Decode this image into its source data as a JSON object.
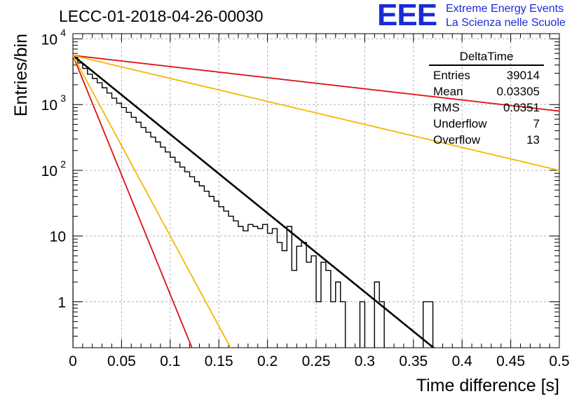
{
  "chart_data": {
    "type": "histogram",
    "title": "LECC-01-2018-04-26-00030",
    "xlabel": "Time difference [s]",
    "ylabel": "Entries/bin",
    "xlim": [
      0,
      0.5
    ],
    "ylim": [
      0.2,
      12000
    ],
    "yscale": "log",
    "grid": true,
    "bin_width": 0.005,
    "x_ticks": [
      "0",
      "0.05",
      "0.1",
      "0.15",
      "0.2",
      "0.25",
      "0.3",
      "0.35",
      "0.4",
      "0.45",
      "0.5"
    ],
    "y_ticks": [
      "1",
      "10",
      "10^2",
      "10^3",
      "10^4"
    ],
    "histogram": {
      "name": "DeltaTime",
      "values": [
        5200,
        4300,
        3550,
        2900,
        2500,
        2150,
        1800,
        1500,
        1250,
        1050,
        900,
        760,
        640,
        540,
        450,
        380,
        320,
        270,
        225,
        190,
        158,
        133,
        112,
        95,
        80,
        67,
        58,
        48,
        40,
        34,
        28,
        24,
        20,
        17,
        14,
        12,
        15,
        14,
        13,
        15,
        11,
        13,
        8,
        6,
        14,
        3,
        7,
        8,
        4,
        5,
        1,
        4,
        3,
        1,
        2,
        1,
        0,
        0,
        0,
        1,
        0,
        0,
        2,
        1,
        0,
        0,
        0,
        0,
        0,
        0,
        0,
        0,
        1,
        1,
        0,
        0,
        0,
        0,
        0,
        0,
        0,
        0,
        0,
        0,
        0,
        0,
        0,
        0,
        0,
        0,
        0,
        0,
        0,
        0,
        0,
        0,
        0,
        0,
        0,
        0
      ]
    },
    "fits": [
      {
        "color": "#000000",
        "A": 5600,
        "tau": 0.0362
      },
      {
        "color": "#dd1111",
        "A": 5600,
        "tau": 0.01195
      },
      {
        "color": "#f5b800",
        "A": 5600,
        "tau": 0.01582
      },
      {
        "color": "#dd1111",
        "A": 5600,
        "tau": 0.2563
      },
      {
        "color": "#f5b800",
        "A": 5600,
        "tau": 0.1241
      }
    ],
    "stats": {
      "name": "DeltaTime",
      "rows": [
        {
          "label": "Entries",
          "value": "39014"
        },
        {
          "label": "Mean",
          "value": "0.03305"
        },
        {
          "label": "RMS",
          "value": "0.0351"
        },
        {
          "label": "Underflow",
          "value": "7"
        },
        {
          "label": "Overflow",
          "value": "13"
        }
      ]
    }
  },
  "logo": {
    "mark": "EEE",
    "line1": "Extreme Energy Events",
    "line2": "La Scienza nelle Scuole",
    "color": "#1a2bd6"
  }
}
